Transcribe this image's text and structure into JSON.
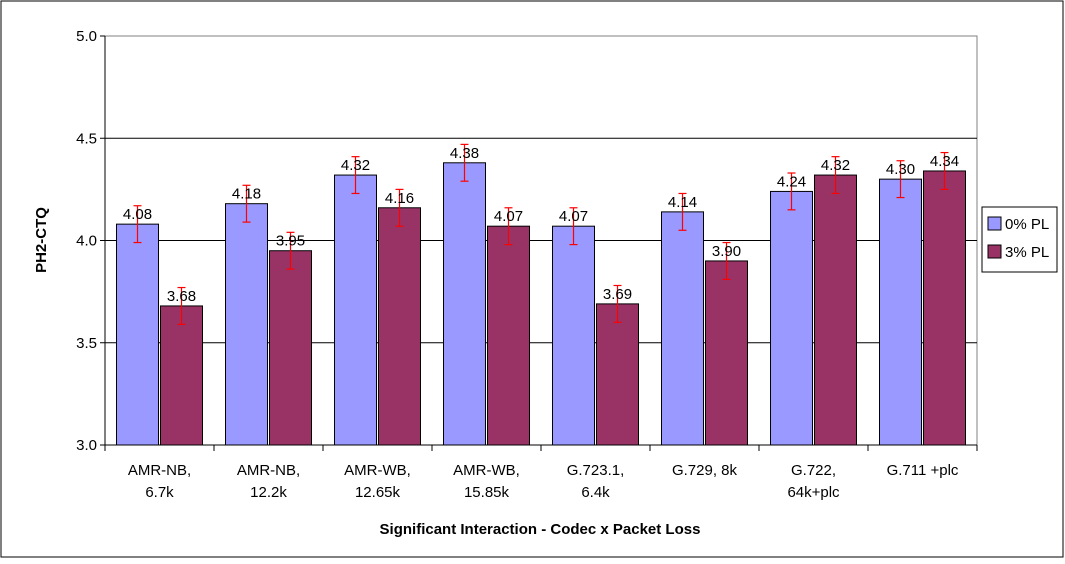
{
  "chart_data": {
    "type": "bar",
    "title": "",
    "xlabel": "Significant Interaction - Codec x Packet Loss",
    "ylabel": "PH2-CTQ",
    "ylim": [
      3.0,
      5.0
    ],
    "yticks": [
      "3.0",
      "3.5",
      "4.0",
      "4.5",
      "5.0"
    ],
    "categories": [
      [
        "AMR-NB,",
        "6.7k"
      ],
      [
        "AMR-NB,",
        "12.2k"
      ],
      [
        "AMR-WB,",
        "12.65k"
      ],
      [
        "AMR-WB,",
        "15.85k"
      ],
      [
        "G.723.1,",
        "6.4k"
      ],
      [
        "G.729, 8k"
      ],
      [
        "G.722,",
        "64k+plc"
      ],
      [
        "G.711 +plc"
      ]
    ],
    "series": [
      {
        "name": "0% PL",
        "color": "#9999ff",
        "values": [
          4.08,
          4.18,
          4.32,
          4.38,
          4.07,
          4.14,
          4.24,
          4.3
        ],
        "labels": [
          "4.08",
          "4.18",
          "4.32",
          "4.38",
          "4.07",
          "4.14",
          "4.24",
          "4.30"
        ],
        "error": 0.09
      },
      {
        "name": "3% PL",
        "color": "#993366",
        "values": [
          3.68,
          3.95,
          4.16,
          4.07,
          3.69,
          3.9,
          4.32,
          4.34
        ],
        "labels": [
          "3.68",
          "3.95",
          "4.16",
          "4.07",
          "3.69",
          "3.90",
          "4.32",
          "4.34"
        ],
        "error": 0.09
      }
    ],
    "error_bar_color": "#ff0000",
    "grid": "horizontal",
    "legend_position": "right"
  }
}
